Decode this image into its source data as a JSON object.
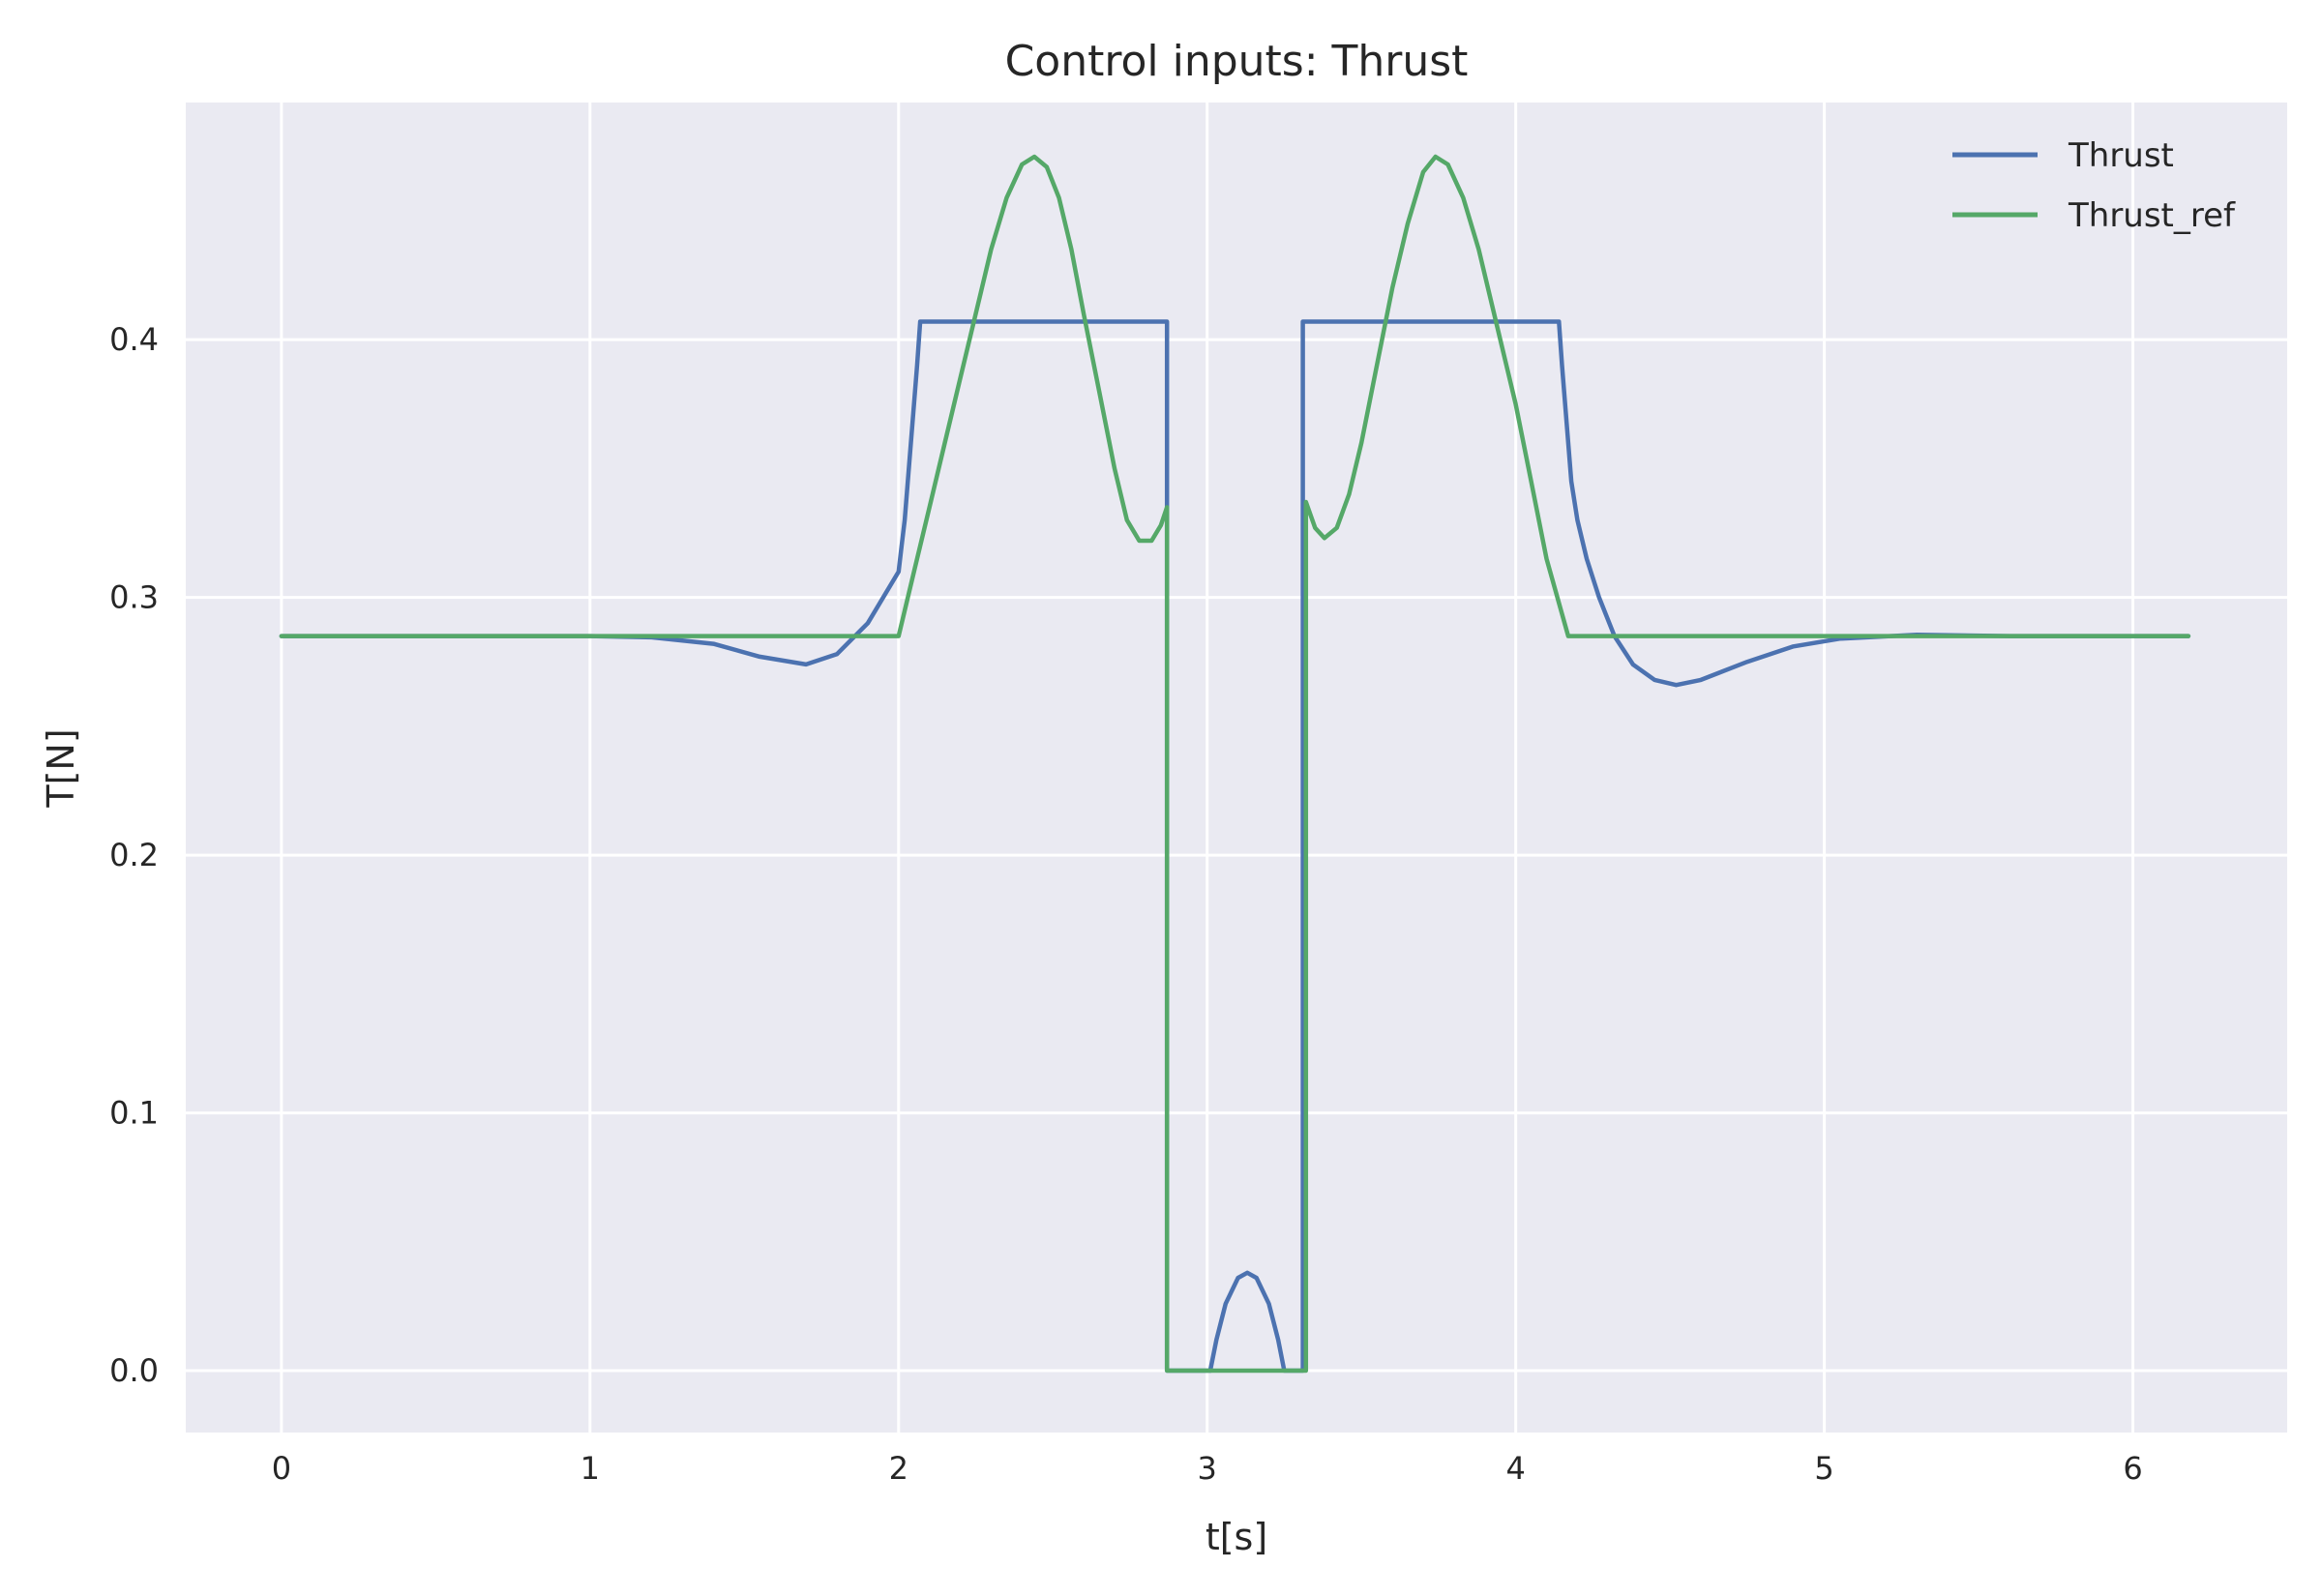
{
  "chart_data": {
    "type": "line",
    "title": "Control inputs: Thrust",
    "xlabel": "t[s]",
    "ylabel": "T[N]",
    "xlim": [
      -0.31,
      6.5
    ],
    "ylim": [
      -0.024,
      0.492
    ],
    "xticks": [
      0,
      1,
      2,
      3,
      4,
      5,
      6
    ],
    "xtick_labels": [
      "0",
      "1",
      "2",
      "3",
      "4",
      "5",
      "6"
    ],
    "yticks": [
      0.0,
      0.1,
      0.2,
      0.3,
      0.4
    ],
    "ytick_labels": [
      "0.0",
      "0.1",
      "0.2",
      "0.3",
      "0.4"
    ],
    "grid": true,
    "legend_position": "top-right",
    "background": "#eaeaf2",
    "series": [
      {
        "name": "Thrust",
        "color": "#4c72b0",
        "points": [
          [
            0,
            0.285
          ],
          [
            1.0,
            0.285
          ],
          [
            1.2,
            0.2845
          ],
          [
            1.4,
            0.282
          ],
          [
            1.55,
            0.277
          ],
          [
            1.7,
            0.274
          ],
          [
            1.8,
            0.278
          ],
          [
            1.9,
            0.29
          ],
          [
            2.0,
            0.31
          ],
          [
            2.01,
            0.32
          ],
          [
            2.02,
            0.33
          ],
          [
            2.03,
            0.345
          ],
          [
            2.04,
            0.36
          ],
          [
            2.05,
            0.375
          ],
          [
            2.06,
            0.39
          ],
          [
            2.07,
            0.407
          ],
          [
            2.87,
            0.407
          ],
          [
            2.87,
            0.0
          ],
          [
            3.01,
            0.0
          ],
          [
            3.03,
            0.012
          ],
          [
            3.06,
            0.026
          ],
          [
            3.1,
            0.036
          ],
          [
            3.13,
            0.038
          ],
          [
            3.16,
            0.036
          ],
          [
            3.2,
            0.026
          ],
          [
            3.23,
            0.012
          ],
          [
            3.25,
            0.0
          ],
          [
            3.31,
            0.0
          ],
          [
            3.31,
            0.407
          ],
          [
            4.14,
            0.407
          ],
          [
            4.15,
            0.39
          ],
          [
            4.16,
            0.375
          ],
          [
            4.17,
            0.36
          ],
          [
            4.18,
            0.345
          ],
          [
            4.2,
            0.33
          ],
          [
            4.23,
            0.315
          ],
          [
            4.27,
            0.3
          ],
          [
            4.32,
            0.285
          ],
          [
            4.38,
            0.274
          ],
          [
            4.45,
            0.268
          ],
          [
            4.52,
            0.266
          ],
          [
            4.6,
            0.268
          ],
          [
            4.75,
            0.275
          ],
          [
            4.9,
            0.281
          ],
          [
            5.05,
            0.284
          ],
          [
            5.3,
            0.2855
          ],
          [
            5.6,
            0.285
          ],
          [
            6.18,
            0.285
          ]
        ]
      },
      {
        "name": "Thrust_ref",
        "color": "#55a868",
        "points": [
          [
            0,
            0.285
          ],
          [
            2.0,
            0.285
          ],
          [
            2.05,
            0.31
          ],
          [
            2.1,
            0.335
          ],
          [
            2.15,
            0.36
          ],
          [
            2.2,
            0.385
          ],
          [
            2.25,
            0.41
          ],
          [
            2.3,
            0.435
          ],
          [
            2.35,
            0.455
          ],
          [
            2.4,
            0.468
          ],
          [
            2.44,
            0.471
          ],
          [
            2.48,
            0.467
          ],
          [
            2.52,
            0.455
          ],
          [
            2.56,
            0.435
          ],
          [
            2.6,
            0.41
          ],
          [
            2.65,
            0.38
          ],
          [
            2.7,
            0.35
          ],
          [
            2.74,
            0.33
          ],
          [
            2.78,
            0.322
          ],
          [
            2.82,
            0.322
          ],
          [
            2.85,
            0.328
          ],
          [
            2.87,
            0.335
          ],
          [
            2.87,
            0.0
          ],
          [
            3.32,
            0.0
          ],
          [
            3.32,
            0.337
          ],
          [
            3.35,
            0.327
          ],
          [
            3.38,
            0.323
          ],
          [
            3.42,
            0.327
          ],
          [
            3.46,
            0.34
          ],
          [
            3.5,
            0.36
          ],
          [
            3.55,
            0.39
          ],
          [
            3.6,
            0.42
          ],
          [
            3.65,
            0.445
          ],
          [
            3.7,
            0.465
          ],
          [
            3.74,
            0.471
          ],
          [
            3.78,
            0.468
          ],
          [
            3.83,
            0.455
          ],
          [
            3.88,
            0.435
          ],
          [
            3.94,
            0.405
          ],
          [
            4.0,
            0.375
          ],
          [
            4.05,
            0.345
          ],
          [
            4.1,
            0.315
          ],
          [
            4.17,
            0.285
          ],
          [
            6.18,
            0.285
          ]
        ]
      }
    ]
  }
}
